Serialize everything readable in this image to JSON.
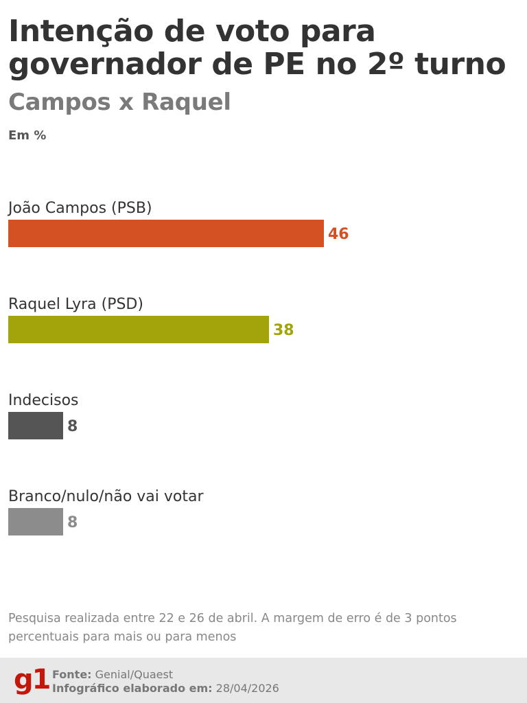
{
  "title": "Intenção de voto para governador de PE no 2º turno",
  "subtitle": "Campos x Raquel",
  "unit": "Em %",
  "chart_data": {
    "type": "bar",
    "orientation": "horizontal",
    "categories": [
      "João Campos (PSB)",
      "Raquel Lyra (PSD)",
      "Indecisos",
      "Branco/nulo/não vai votar"
    ],
    "values": [
      46,
      38,
      8,
      8
    ],
    "colors": [
      "#d35122",
      "#a3a30c",
      "#555555",
      "#8c8c8c"
    ],
    "xlim": [
      0,
      100
    ],
    "grid": false,
    "legend": "none"
  },
  "note": "Pesquisa realizada entre 22 e 26 de abril. A margem de erro é de 3 pontos percentuais para mais ou para menos",
  "footer": {
    "logo": "g1",
    "source_label": "Fonte:",
    "source_value": "Genial/Quaest",
    "credit_label": "Infográfico elaborado em:",
    "credit_value": "28/04/2026"
  },
  "colors": {
    "title": "#333333",
    "subtitle": "#7a7a7a",
    "brand": "#c4170c",
    "footer_bg": "#e8e8e8"
  }
}
